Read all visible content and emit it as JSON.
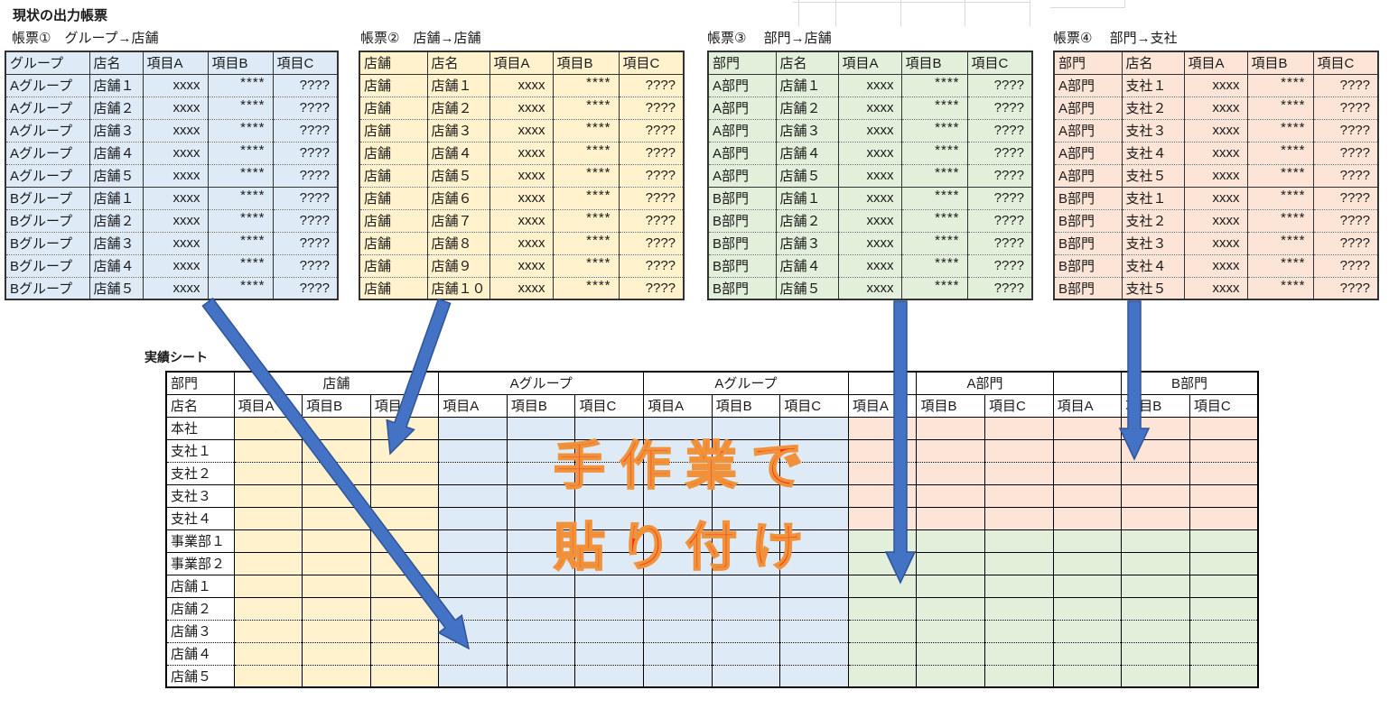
{
  "section_title": "現状の出力帳票",
  "reports": [
    {
      "title": "帳票①　グループ→店舗",
      "columns": [
        "グループ",
        "店名",
        "項目A",
        "項目B",
        "項目C"
      ],
      "fill": "#DEEBF7",
      "block_split": 5,
      "rows": [
        [
          "Aグループ",
          "店舗１",
          "xxxx",
          "****",
          "????"
        ],
        [
          "Aグループ",
          "店舗２",
          "xxxx",
          "****",
          "????"
        ],
        [
          "Aグループ",
          "店舗３",
          "xxxx",
          "****",
          "????"
        ],
        [
          "Aグループ",
          "店舗４",
          "xxxx",
          "****",
          "????"
        ],
        [
          "Aグループ",
          "店舗５",
          "xxxx",
          "****",
          "????"
        ],
        [
          "Bグループ",
          "店舗１",
          "xxxx",
          "****",
          "????"
        ],
        [
          "Bグループ",
          "店舗２",
          "xxxx",
          "****",
          "????"
        ],
        [
          "Bグループ",
          "店舗３",
          "xxxx",
          "****",
          "????"
        ],
        [
          "Bグループ",
          "店舗４",
          "xxxx",
          "****",
          "????"
        ],
        [
          "Bグループ",
          "店舗５",
          "xxxx",
          "****",
          "????"
        ]
      ]
    },
    {
      "title": "帳票②　店舗→店舗",
      "columns": [
        "店舗",
        "店名",
        "項目A",
        "項目B",
        "項目C"
      ],
      "fill": "#FFF2CC",
      "block_split": 0,
      "rows": [
        [
          "店舗",
          "店舗１",
          "xxxx",
          "****",
          "????"
        ],
        [
          "店舗",
          "店舗２",
          "xxxx",
          "****",
          "????"
        ],
        [
          "店舗",
          "店舗３",
          "xxxx",
          "****",
          "????"
        ],
        [
          "店舗",
          "店舗４",
          "xxxx",
          "****",
          "????"
        ],
        [
          "店舗",
          "店舗５",
          "xxxx",
          "****",
          "????"
        ],
        [
          "店舗",
          "店舗６",
          "xxxx",
          "****",
          "????"
        ],
        [
          "店舗",
          "店舗７",
          "xxxx",
          "****",
          "????"
        ],
        [
          "店舗",
          "店舗８",
          "xxxx",
          "****",
          "????"
        ],
        [
          "店舗",
          "店舗９",
          "xxxx",
          "****",
          "????"
        ],
        [
          "店舗",
          "店舗１０",
          "xxxx",
          "****",
          "????"
        ]
      ]
    },
    {
      "title": "帳票③　 部門→店舗",
      "columns": [
        "部門",
        "店名",
        "項目A",
        "項目B",
        "項目C"
      ],
      "fill": "#E2EFDA",
      "block_split": 5,
      "rows": [
        [
          "A部門",
          "店舗１",
          "xxxx",
          "****",
          "????"
        ],
        [
          "A部門",
          "店舗２",
          "xxxx",
          "****",
          "????"
        ],
        [
          "A部門",
          "店舗３",
          "xxxx",
          "****",
          "????"
        ],
        [
          "A部門",
          "店舗４",
          "xxxx",
          "****",
          "????"
        ],
        [
          "A部門",
          "店舗５",
          "xxxx",
          "****",
          "????"
        ],
        [
          "B部門",
          "店舗１",
          "xxxx",
          "****",
          "????"
        ],
        [
          "B部門",
          "店舗２",
          "xxxx",
          "****",
          "????"
        ],
        [
          "B部門",
          "店舗３",
          "xxxx",
          "****",
          "????"
        ],
        [
          "B部門",
          "店舗４",
          "xxxx",
          "****",
          "????"
        ],
        [
          "B部門",
          "店舗５",
          "xxxx",
          "****",
          "????"
        ]
      ]
    },
    {
      "title": "帳票④　 部門→支社",
      "columns": [
        "部門",
        "店名",
        "項目A",
        "項目B",
        "項目C"
      ],
      "fill": "#FCE4D6",
      "block_split": 5,
      "rows": [
        [
          "A部門",
          "支社１",
          "xxxx",
          "****",
          "????"
        ],
        [
          "A部門",
          "支社２",
          "xxxx",
          "****",
          "????"
        ],
        [
          "A部門",
          "支社３",
          "xxxx",
          "****",
          "????"
        ],
        [
          "A部門",
          "支社４",
          "xxxx",
          "****",
          "????"
        ],
        [
          "A部門",
          "支社５",
          "xxxx",
          "****",
          "????"
        ],
        [
          "B部門",
          "支社１",
          "xxxx",
          "****",
          "????"
        ],
        [
          "B部門",
          "支社２",
          "xxxx",
          "****",
          "????"
        ],
        [
          "B部門",
          "支社３",
          "xxxx",
          "****",
          "????"
        ],
        [
          "B部門",
          "支社４",
          "xxxx",
          "****",
          "????"
        ],
        [
          "B部門",
          "支社５",
          "xxxx",
          "****",
          "????"
        ]
      ]
    }
  ],
  "results_sheet": {
    "title": "実績シート",
    "corner_top": "部門",
    "corner_bottom": "店名",
    "group_headers": [
      {
        "label": "店舗",
        "span": 3
      },
      {
        "label": "Aグループ",
        "span": 3
      },
      {
        "label": "Aグループ",
        "span": 3
      },
      {
        "label": "",
        "span": 1
      },
      {
        "label": "A部門",
        "span": 2
      },
      {
        "label": "",
        "span": 1
      },
      {
        "label": "B部門",
        "span": 2
      }
    ],
    "item_headers": [
      "項目A",
      "項目B",
      "項目C",
      "項目A",
      "項目B",
      "項目C",
      "項目A",
      "項目B",
      "項目C",
      "項目A",
      "項目B",
      "項目C",
      "項目A",
      "項目B",
      "項目C"
    ],
    "row_labels": [
      "本社",
      "支社１",
      "支社２",
      "支社３",
      "支社４",
      "事業部１",
      "事業部２",
      "店舗１",
      "店舗２",
      "店舗３",
      "店舗４",
      "店舗５"
    ],
    "dotted_after_rows": [
      1,
      8,
      9,
      10
    ],
    "fills": {
      "yellow": "#FFF2CC",
      "blue": "#DEEBF7",
      "pink": "#FCE4D6",
      "green": "#E2EFDA"
    },
    "pink_row_count": 5
  },
  "overlay": {
    "line1": "手作業で",
    "line2": "貼り付け",
    "fill_color": "#FB2E0C",
    "outline_color": "#F0923C"
  },
  "arrow": {
    "fill_color": "#4472C4",
    "outline_color": "#2F5597"
  }
}
